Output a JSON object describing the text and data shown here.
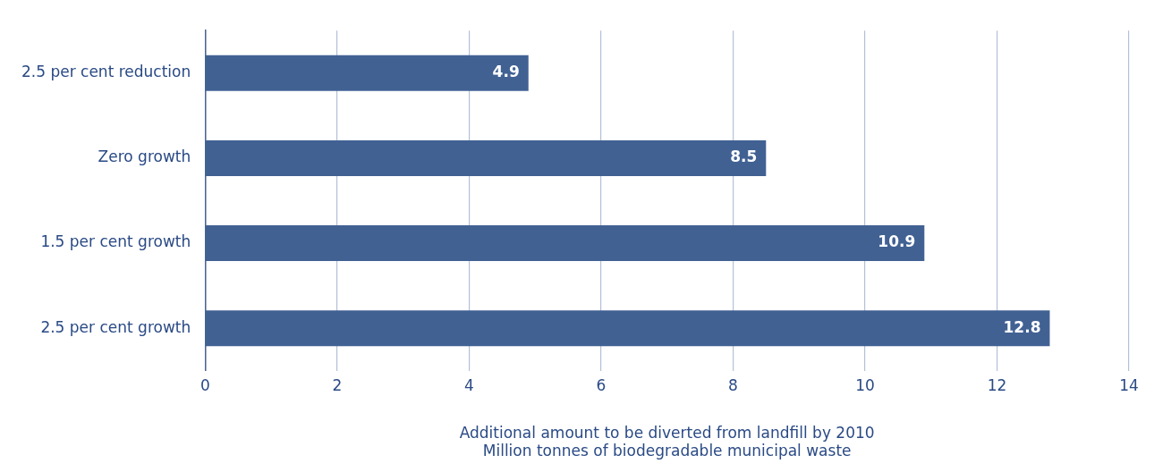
{
  "chart_data": {
    "type": "bar",
    "orientation": "horizontal",
    "categories": [
      "2.5 per cent reduction",
      "Zero growth",
      "1.5 per cent growth",
      "2.5 per cent growth"
    ],
    "values": [
      4.9,
      8.5,
      10.9,
      12.8
    ],
    "color": "#416193",
    "xlim": [
      0,
      14
    ],
    "xticks": [
      0,
      2,
      4,
      6,
      8,
      10,
      12,
      14
    ],
    "xlabel": "Additional amount to be diverted from landfill by 2010\nMillion tonnes of biodegradable municipal waste",
    "grid": "x",
    "legend": false,
    "data_labels": true
  }
}
